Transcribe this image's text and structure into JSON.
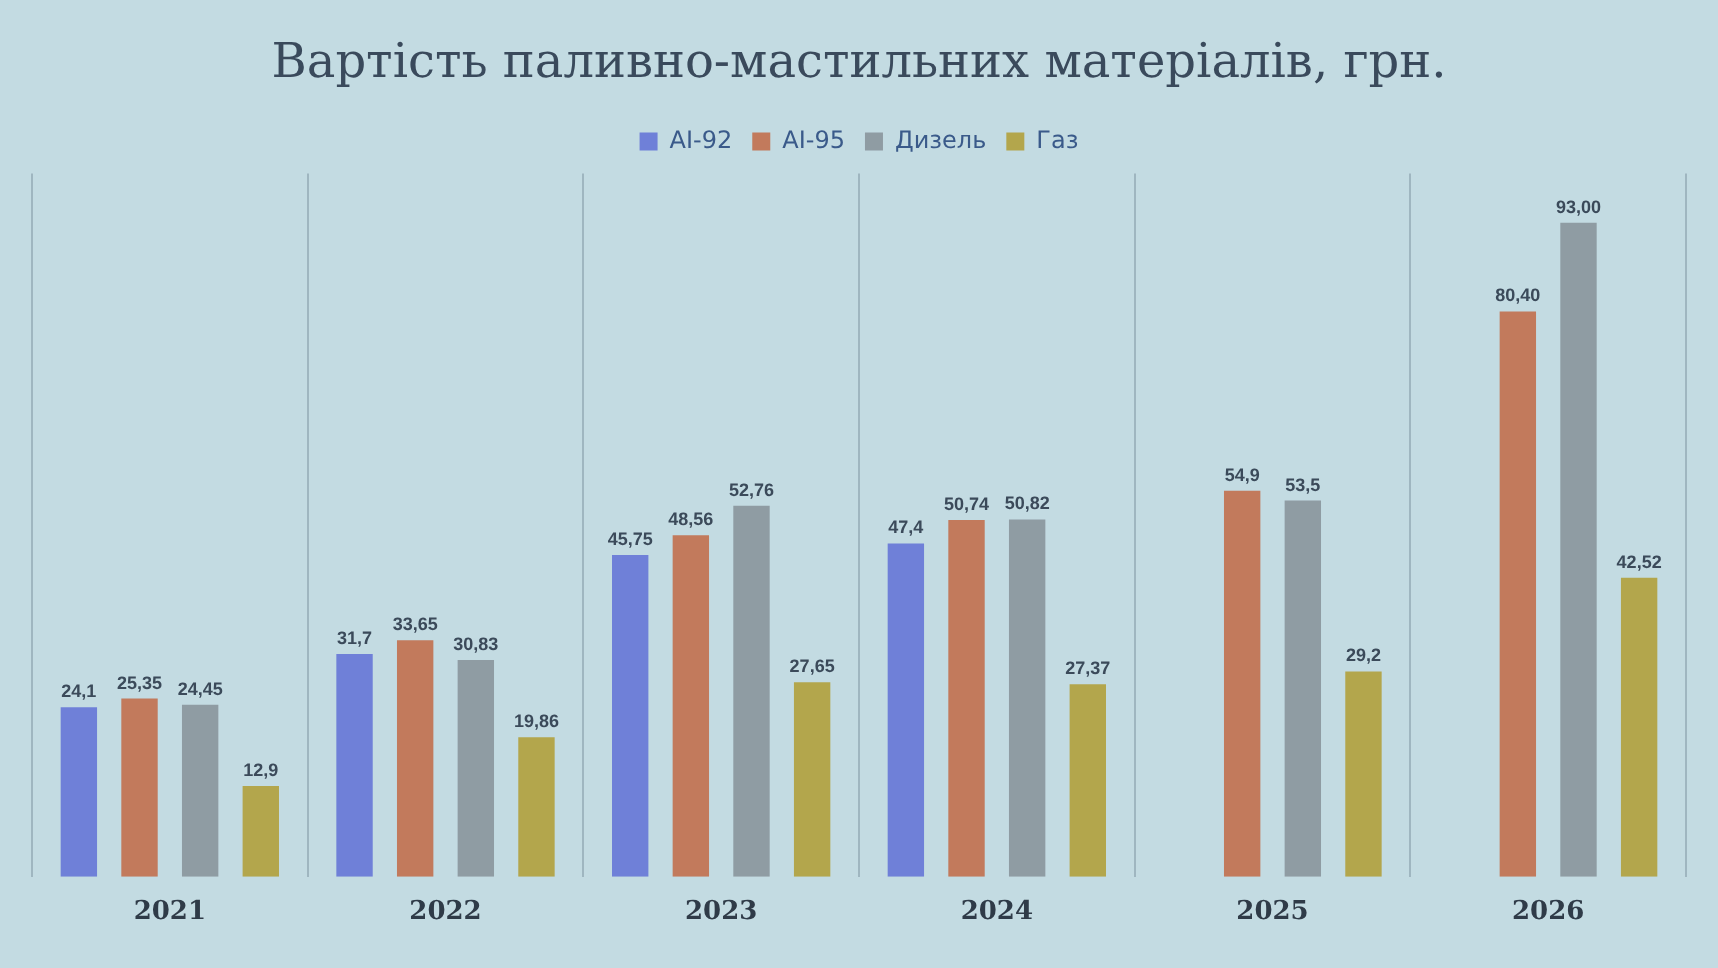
{
  "chart_data": {
    "type": "bar",
    "title": "Вартість паливно-мастильних матеріалів, грн.",
    "categories": [
      "2021",
      "2022",
      "2023",
      "2024",
      "2025",
      "2026"
    ],
    "series": [
      {
        "name": "AI-92",
        "color": "#6f80d8",
        "values": [
          24.1,
          31.7,
          45.75,
          47.4,
          null,
          null
        ],
        "value_labels": [
          "24,1",
          "31,7",
          "45,75",
          "47,4",
          null,
          null
        ]
      },
      {
        "name": "AI-95",
        "color": "#c27a5c",
        "values": [
          25.35,
          33.65,
          48.56,
          50.74,
          54.9,
          80.4
        ],
        "value_labels": [
          "25,35",
          "33,65",
          "48,56",
          "50,74",
          "54,9",
          "80,40"
        ]
      },
      {
        "name": "Дизель",
        "color": "#8f9ca3",
        "values": [
          24.45,
          30.83,
          52.76,
          50.82,
          53.5,
          93
        ],
        "value_labels": [
          "24,45",
          "30,83",
          "52,76",
          "50,82",
          "53,5",
          "93,00"
        ]
      },
      {
        "name": "Газ",
        "color": "#b3a64c",
        "values": [
          12.9,
          19.86,
          27.65,
          27.37,
          29.2,
          42.52
        ],
        "value_labels": [
          "12,9",
          "19,86",
          "27,65",
          "27,37",
          "29,2",
          "42,52"
        ]
      }
    ],
    "grid": "x",
    "legend": "top"
  }
}
